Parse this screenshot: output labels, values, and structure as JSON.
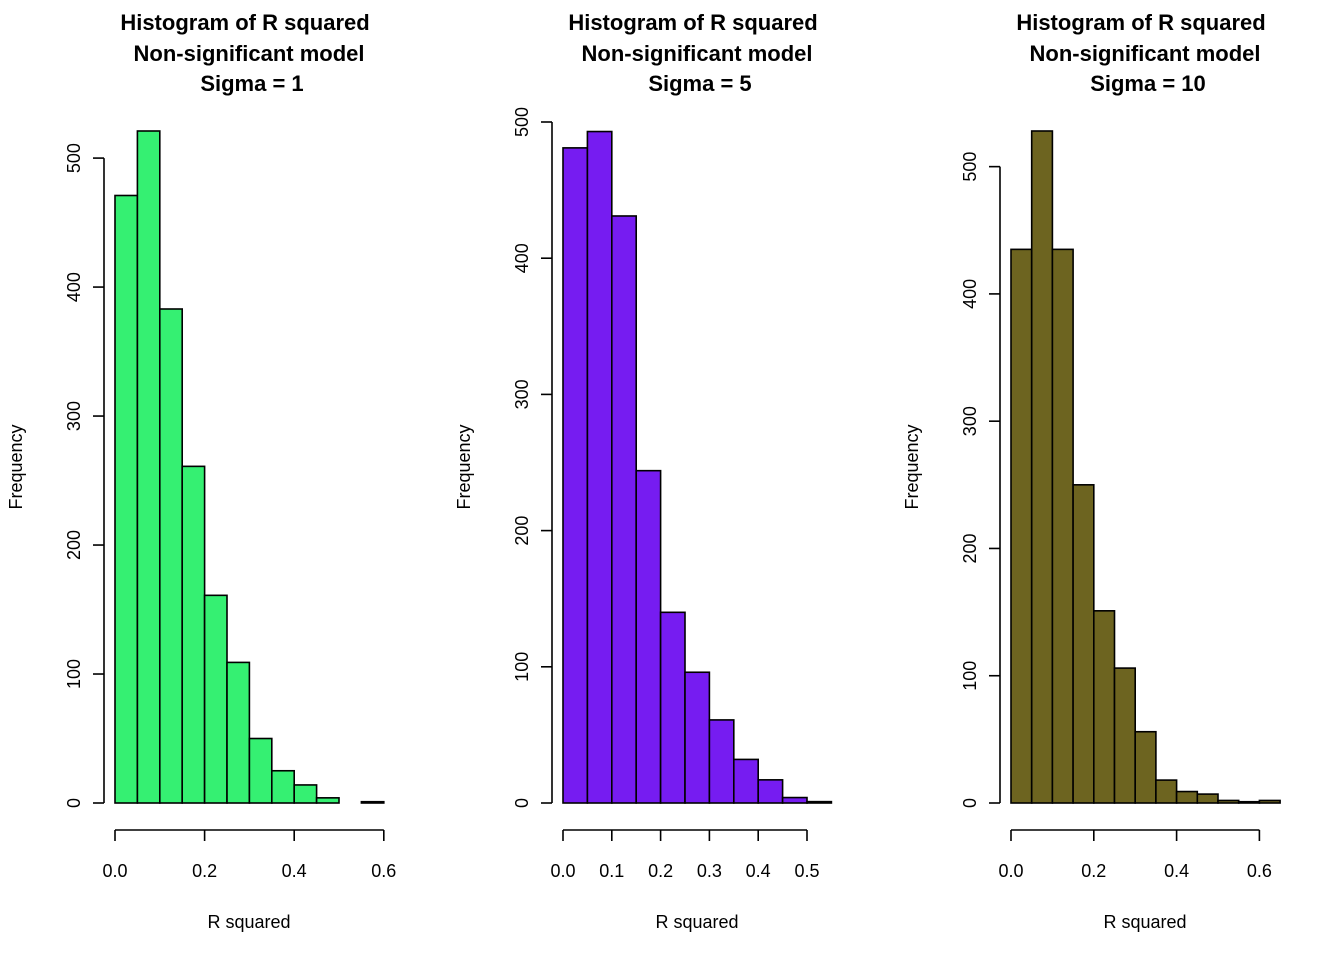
{
  "chart_data": [
    {
      "type": "bar",
      "title_lines": [
        "Histogram of R squared",
        "Non-significant model",
        "Sigma = 1"
      ],
      "xlabel": "R squared",
      "ylabel": "Frequency",
      "bar_color": "#35F072",
      "bin_edges": [
        0.0,
        0.05,
        0.1,
        0.15,
        0.2,
        0.25,
        0.3,
        0.35,
        0.4,
        0.45,
        0.5,
        0.55,
        0.6
      ],
      "values": [
        471,
        521,
        383,
        261,
        161,
        109,
        50,
        25,
        14,
        4,
        0,
        1
      ],
      "xticks": [
        0.0,
        0.2,
        0.4,
        0.6
      ],
      "xtick_labels": [
        "0.0",
        "0.2",
        "0.4",
        "0.6"
      ],
      "yticks": [
        0,
        100,
        200,
        300,
        400,
        500
      ],
      "ytick_labels": [
        "0",
        "100",
        "200",
        "300",
        "400",
        "500"
      ],
      "xlim": [
        0.0,
        0.6
      ],
      "ylim": [
        0,
        521
      ]
    },
    {
      "type": "bar",
      "title_lines": [
        "Histogram of R squared",
        "Non-significant model",
        "Sigma = 5"
      ],
      "xlabel": "R squared",
      "ylabel": "Frequency",
      "bar_color": "#761CF1",
      "bin_edges": [
        0.0,
        0.05,
        0.1,
        0.15,
        0.2,
        0.25,
        0.3,
        0.35,
        0.4,
        0.45,
        0.5,
        0.55
      ],
      "values": [
        481,
        493,
        431,
        244,
        140,
        96,
        61,
        32,
        17,
        4,
        1
      ],
      "xticks": [
        0.0,
        0.1,
        0.2,
        0.3,
        0.4,
        0.5
      ],
      "xtick_labels": [
        "0.0",
        "0.1",
        "0.2",
        "0.3",
        "0.4",
        "0.5"
      ],
      "yticks": [
        0,
        100,
        200,
        300,
        400,
        500
      ],
      "ytick_labels": [
        "0",
        "100",
        "200",
        "300",
        "400",
        "500"
      ],
      "xlim": [
        0.0,
        0.55
      ],
      "ylim": [
        0,
        500
      ]
    },
    {
      "type": "bar",
      "title_lines": [
        "Histogram of R squared",
        "Non-significant model",
        "Sigma = 10"
      ],
      "xlabel": "R squared",
      "ylabel": "Frequency",
      "bar_color": "#6D6420",
      "bin_edges": [
        0.0,
        0.05,
        0.1,
        0.15,
        0.2,
        0.25,
        0.3,
        0.35,
        0.4,
        0.45,
        0.5,
        0.55,
        0.6,
        0.65
      ],
      "values": [
        435,
        528,
        435,
        250,
        151,
        106,
        56,
        18,
        9,
        7,
        2,
        1,
        2
      ],
      "xticks": [
        0.0,
        0.2,
        0.4,
        0.6
      ],
      "xtick_labels": [
        "0.0",
        "0.2",
        "0.4",
        "0.6"
      ],
      "yticks": [
        0,
        100,
        200,
        300,
        400,
        500
      ],
      "ytick_labels": [
        "0",
        "100",
        "200",
        "300",
        "400",
        "500"
      ],
      "xlim": [
        0.0,
        0.65
      ],
      "ylim": [
        0,
        528
      ]
    }
  ]
}
